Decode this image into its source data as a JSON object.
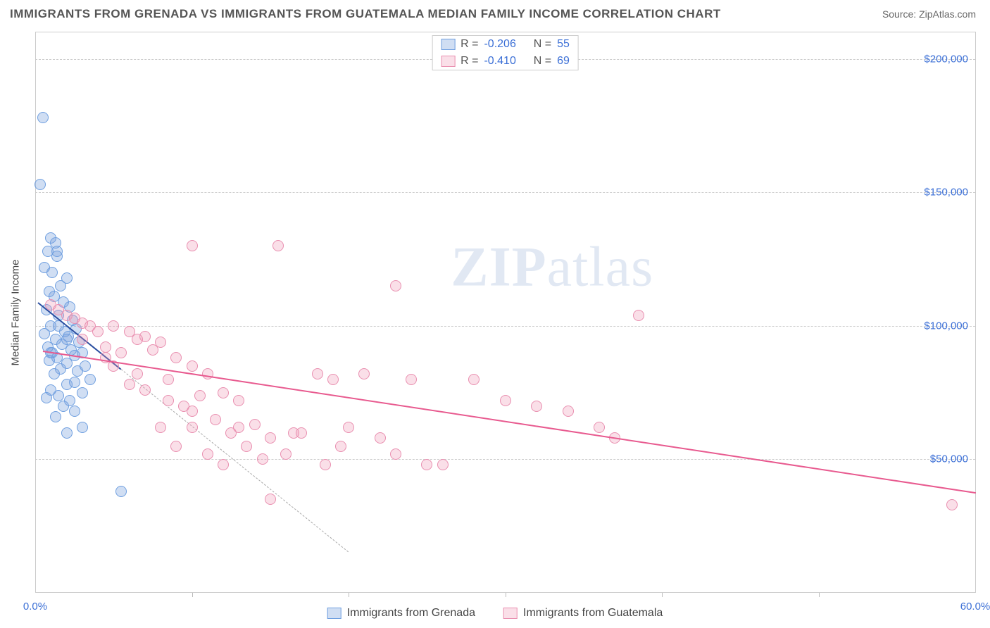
{
  "header": {
    "title": "IMMIGRANTS FROM GRENADA VS IMMIGRANTS FROM GUATEMALA MEDIAN FAMILY INCOME CORRELATION CHART",
    "source_prefix": "Source: ",
    "source": "ZipAtlas.com"
  },
  "watermark": {
    "zip": "ZIP",
    "atlas": "atlas"
  },
  "chart": {
    "type": "scatter",
    "y_axis_label": "Median Family Income",
    "xlim": [
      0,
      60
    ],
    "ylim": [
      0,
      210000
    ],
    "x_tick_labels": {
      "0": "0.0%",
      "60": "60.0%"
    },
    "x_minor_ticks": [
      10,
      20,
      30,
      40,
      50
    ],
    "y_ticks": [
      {
        "v": 50000,
        "label": "$50,000"
      },
      {
        "v": 100000,
        "label": "$100,000"
      },
      {
        "v": 150000,
        "label": "$150,000"
      },
      {
        "v": 200000,
        "label": "$200,000"
      }
    ],
    "series": [
      {
        "key": "grenada",
        "label": "Immigrants from Grenada",
        "fill": "rgba(120,160,220,0.35)",
        "stroke": "#6f9fe0",
        "r": -0.206,
        "n": 55,
        "trend": {
          "x1": 0.2,
          "y1": 109000,
          "x2": 5.5,
          "y2": 84000,
          "color": "#2a4ea0",
          "dash_extend_to_x": 20
        },
        "points": [
          [
            0.5,
            178000
          ],
          [
            0.3,
            153000
          ],
          [
            1.0,
            133000
          ],
          [
            1.3,
            131000
          ],
          [
            0.8,
            128000
          ],
          [
            1.4,
            126000
          ],
          [
            0.6,
            122000
          ],
          [
            1.1,
            120000
          ],
          [
            2.0,
            118000
          ],
          [
            1.6,
            115000
          ],
          [
            0.9,
            113000
          ],
          [
            1.2,
            111000
          ],
          [
            1.8,
            109000
          ],
          [
            2.2,
            107000
          ],
          [
            0.7,
            106000
          ],
          [
            1.5,
            104000
          ],
          [
            2.4,
            102000
          ],
          [
            1.0,
            100000
          ],
          [
            2.6,
            99000
          ],
          [
            1.9,
            98000
          ],
          [
            0.6,
            97000
          ],
          [
            2.1,
            96000
          ],
          [
            1.3,
            95000
          ],
          [
            2.8,
            94000
          ],
          [
            1.7,
            93000
          ],
          [
            0.8,
            92000
          ],
          [
            2.3,
            91000
          ],
          [
            1.1,
            90000
          ],
          [
            3.0,
            90000
          ],
          [
            2.5,
            89000
          ],
          [
            1.4,
            88000
          ],
          [
            0.9,
            87000
          ],
          [
            2.0,
            86000
          ],
          [
            3.2,
            85000
          ],
          [
            1.6,
            84000
          ],
          [
            2.7,
            83000
          ],
          [
            1.2,
            82000
          ],
          [
            3.5,
            80000
          ],
          [
            2.0,
            78000
          ],
          [
            1.0,
            76000
          ],
          [
            2.5,
            79000
          ],
          [
            3.0,
            75000
          ],
          [
            1.5,
            74000
          ],
          [
            0.7,
            73000
          ],
          [
            2.2,
            72000
          ],
          [
            1.8,
            70000
          ],
          [
            2.5,
            68000
          ],
          [
            1.3,
            66000
          ],
          [
            3.0,
            62000
          ],
          [
            2.0,
            60000
          ],
          [
            5.5,
            38000
          ],
          [
            1.4,
            128000
          ],
          [
            1.0,
            90000
          ],
          [
            1.5,
            100000
          ],
          [
            2.0,
            95000
          ]
        ]
      },
      {
        "key": "guatemala",
        "label": "Immigrants from Guatemala",
        "fill": "rgba(240,150,180,0.30)",
        "stroke": "#e98fb0",
        "r": -0.41,
        "n": 69,
        "trend": {
          "x1": 0.5,
          "y1": 91000,
          "x2": 60,
          "y2": 38000,
          "color": "#e85a8f"
        },
        "points": [
          [
            1.0,
            108000
          ],
          [
            1.5,
            106000
          ],
          [
            2.0,
            104000
          ],
          [
            10.0,
            130000
          ],
          [
            15.5,
            130000
          ],
          [
            2.5,
            103000
          ],
          [
            3.0,
            101000
          ],
          [
            3.5,
            100000
          ],
          [
            23.0,
            115000
          ],
          [
            4.0,
            98000
          ],
          [
            5.0,
            100000
          ],
          [
            6.0,
            98000
          ],
          [
            7.0,
            96000
          ],
          [
            6.5,
            95000
          ],
          [
            8.0,
            94000
          ],
          [
            4.5,
            92000
          ],
          [
            5.5,
            90000
          ],
          [
            7.5,
            91000
          ],
          [
            9.0,
            88000
          ],
          [
            10.0,
            85000
          ],
          [
            11.0,
            82000
          ],
          [
            38.5,
            104000
          ],
          [
            12.0,
            75000
          ],
          [
            8.5,
            80000
          ],
          [
            6.0,
            78000
          ],
          [
            7.0,
            76000
          ],
          [
            10.5,
            74000
          ],
          [
            13.0,
            72000
          ],
          [
            9.5,
            70000
          ],
          [
            18.0,
            82000
          ],
          [
            19.0,
            80000
          ],
          [
            21.0,
            82000
          ],
          [
            24.0,
            80000
          ],
          [
            28.0,
            80000
          ],
          [
            11.5,
            65000
          ],
          [
            14.0,
            63000
          ],
          [
            8.0,
            62000
          ],
          [
            12.5,
            60000
          ],
          [
            15.0,
            58000
          ],
          [
            30.0,
            72000
          ],
          [
            32.0,
            70000
          ],
          [
            10.0,
            62000
          ],
          [
            13.5,
            55000
          ],
          [
            16.0,
            52000
          ],
          [
            34.0,
            68000
          ],
          [
            17.0,
            60000
          ],
          [
            9.0,
            55000
          ],
          [
            11.0,
            52000
          ],
          [
            14.5,
            50000
          ],
          [
            18.5,
            48000
          ],
          [
            25.0,
            48000
          ],
          [
            12.0,
            48000
          ],
          [
            20.0,
            62000
          ],
          [
            22.0,
            58000
          ],
          [
            26.0,
            48000
          ],
          [
            15.0,
            35000
          ],
          [
            36.0,
            62000
          ],
          [
            37.0,
            58000
          ],
          [
            58.5,
            33000
          ],
          [
            3.0,
            95000
          ],
          [
            4.5,
            88000
          ],
          [
            5.0,
            85000
          ],
          [
            6.5,
            82000
          ],
          [
            8.5,
            72000
          ],
          [
            10.0,
            68000
          ],
          [
            13.0,
            62000
          ],
          [
            16.5,
            60000
          ],
          [
            19.5,
            55000
          ],
          [
            23.0,
            52000
          ]
        ]
      }
    ]
  },
  "legend_stats": {
    "r_label": "R =",
    "n_label": "N ="
  }
}
